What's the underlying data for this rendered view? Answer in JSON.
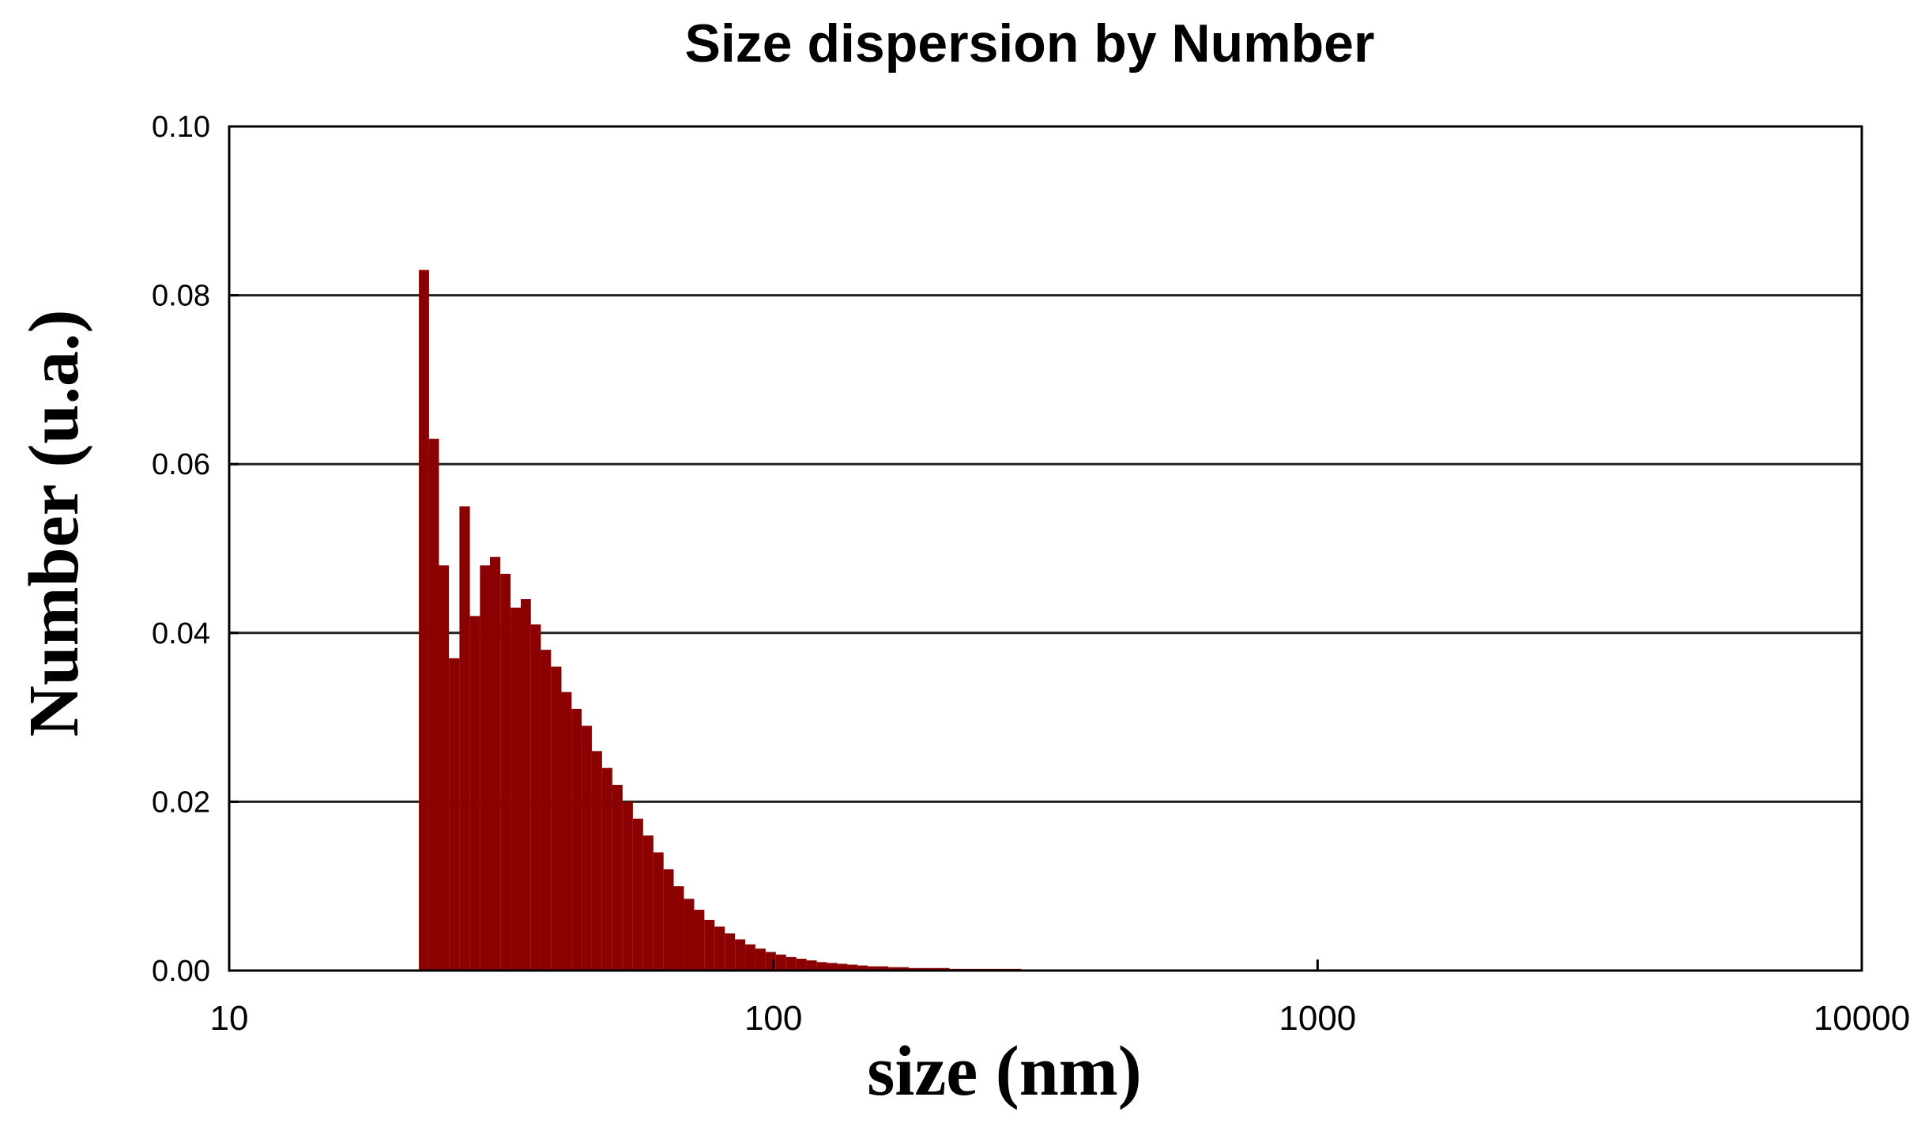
{
  "chart_data": {
    "type": "bar",
    "title": "Size dispersion by Number",
    "xlabel": "size (nm)",
    "ylabel": "Number (u.a.)",
    "x_scale": "log",
    "xlim": [
      10,
      10000
    ],
    "ylim": [
      0,
      0.1
    ],
    "x_ticks": [
      {
        "value": 10,
        "label": "10"
      },
      {
        "value": 100,
        "label": "100"
      },
      {
        "value": 1000,
        "label": "1000"
      },
      {
        "value": 10000,
        "label": "10000"
      }
    ],
    "y_ticks": [
      {
        "value": 0,
        "label": "0.00"
      },
      {
        "value": 0.02,
        "label": "0.02"
      },
      {
        "value": 0.04,
        "label": "0.04"
      },
      {
        "value": 0.06,
        "label": "0.06"
      },
      {
        "value": 0.08,
        "label": "0.08"
      },
      {
        "value": 0.1,
        "label": "0.10"
      }
    ],
    "grid": "horizontal",
    "bar_color": "#8b0000",
    "series": [
      {
        "x": [
          22.8,
          23.8,
          24.8,
          25.9,
          27.1,
          28.3,
          29.5,
          30.8,
          32.2,
          33.6,
          35.1,
          36.6,
          38.2,
          39.9,
          41.7,
          43.5,
          45.4,
          47.4,
          49.5,
          51.7,
          54.0,
          56.4,
          58.9,
          61.5,
          64.2,
          67.0,
          70.0,
          73.1,
          76.3,
          79.7,
          83.2,
          86.9,
          90.7,
          94.7,
          98.9,
          103.3,
          107.8,
          112.6,
          117.6,
          122.8,
          128.2,
          133.9,
          139.8,
          146.0,
          152.4,
          159.2,
          166.2,
          173.5,
          181.2,
          189.2,
          197.6,
          206.3,
          215.4,
          225.0,
          234.9,
          245.3,
          256.2,
          267.5,
          279.3,
          291.7,
          304.6,
          318.0,
          332.1,
          346.8,
          362.1,
          378.1,
          394.8,
          412.3,
          430.5,
          449.6,
          469.5,
          490.2
        ],
        "values": [
          0.083,
          0.063,
          0.048,
          0.037,
          0.055,
          0.042,
          0.048,
          0.049,
          0.047,
          0.043,
          0.044,
          0.041,
          0.038,
          0.036,
          0.033,
          0.031,
          0.029,
          0.026,
          0.024,
          0.022,
          0.02,
          0.018,
          0.016,
          0.014,
          0.012,
          0.01,
          0.0085,
          0.0072,
          0.006,
          0.0052,
          0.0044,
          0.0037,
          0.0031,
          0.0026,
          0.0022,
          0.0019,
          0.0016,
          0.0014,
          0.0012,
          0.001,
          0.0009,
          0.0008,
          0.0007,
          0.0006,
          0.0005,
          0.0005,
          0.0004,
          0.0004,
          0.0003,
          0.0003,
          0.0003,
          0.0003,
          0.0002,
          0.0002,
          0.0002,
          0.0002,
          0.0002,
          0.0002,
          0.0002,
          0.0001,
          0.0001,
          0.0001,
          0.0001,
          0.0001,
          0.0001,
          0.0001,
          0.0001,
          0.0001,
          0.0001,
          0.0001,
          0.0001,
          0.0001
        ]
      }
    ]
  }
}
